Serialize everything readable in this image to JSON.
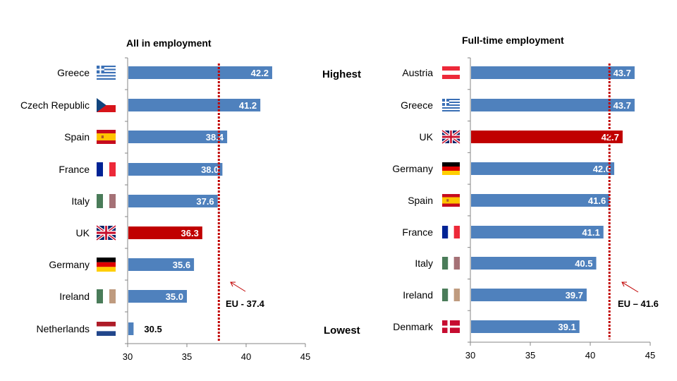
{
  "chart_data": [
    {
      "type": "bar",
      "orientation": "horizontal",
      "title": "All in employment",
      "categories": [
        "Greece",
        "Czech Republic",
        "Spain",
        "France",
        "Italy",
        "UK",
        "Germany",
        "Ireland",
        "Netherlands"
      ],
      "values": [
        42.2,
        41.2,
        38.4,
        38.0,
        37.6,
        36.3,
        35.6,
        35.0,
        30.5
      ],
      "value_labels": [
        "42.2",
        "41.2",
        "38.4",
        "38.0",
        "37.6",
        "36.3",
        "35.6",
        "35.0",
        "30.5"
      ],
      "highlight": "UK",
      "xlim": [
        30,
        45
      ],
      "xticks": [
        "30",
        "35",
        "40",
        "45"
      ],
      "reference_line": {
        "value": 37.4,
        "label": "EU - 37.4"
      },
      "grid": false
    },
    {
      "type": "bar",
      "orientation": "horizontal",
      "title": "Full-time employment",
      "categories": [
        "Austria",
        "Greece",
        "UK",
        "Germany",
        "Spain",
        "France",
        "Italy",
        "Ireland",
        "Denmark"
      ],
      "values": [
        43.7,
        43.7,
        42.7,
        42.0,
        41.6,
        41.1,
        40.5,
        39.7,
        39.1
      ],
      "value_labels": [
        "43.7",
        "43.7",
        "42.7",
        "42.0",
        "41.6",
        "41.1",
        "40.5",
        "39.7",
        "39.1"
      ],
      "highlight": "UK",
      "xlim": [
        30,
        45
      ],
      "xticks": [
        "30",
        "35",
        "40",
        "45"
      ],
      "reference_line": {
        "value": 41.6,
        "label": "EU – 41.6"
      },
      "grid": false
    }
  ],
  "side_labels": {
    "highest": "Highest",
    "lowest": "Lowest"
  },
  "colors": {
    "bar": "#4f81bd",
    "highlight": "#c00000",
    "eu_line": "#c00000",
    "axis": "#868686"
  }
}
